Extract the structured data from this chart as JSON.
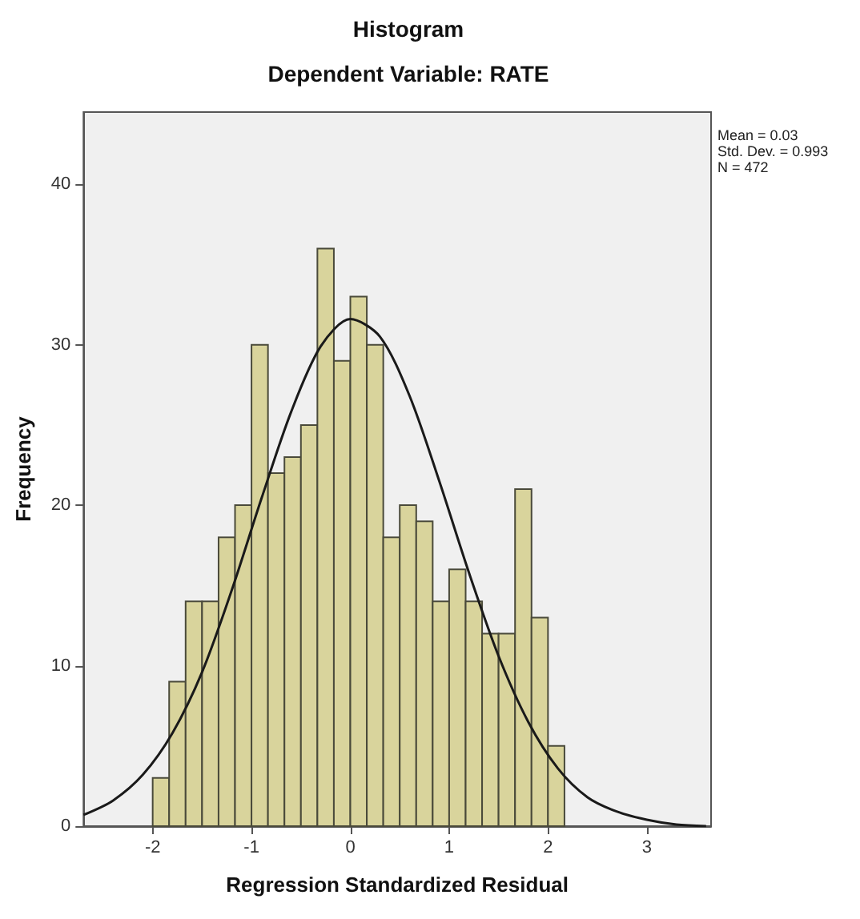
{
  "chart_data": {
    "type": "histogram",
    "title": "Histogram",
    "subtitle": "Dependent Variable: RATE",
    "xlabel": "Regression Standardized Residual",
    "ylabel": "Frequency",
    "bins": [
      -2,
      -1.8333,
      -1.6667,
      -1.5,
      -1.3333,
      -1.1667,
      -1,
      -0.8333,
      -0.6667,
      -0.5,
      -0.3333,
      -0.1667,
      0,
      0.1667,
      0.3333,
      0.5,
      0.6667,
      0.8333,
      1,
      1.1667,
      1.3333,
      1.5,
      1.6667,
      1.8333,
      2,
      2.1667
    ],
    "values": [
      3,
      9,
      14,
      14,
      18,
      20,
      30,
      22,
      23,
      25,
      36,
      29,
      33,
      30,
      18,
      20,
      19,
      14,
      16,
      14,
      12,
      12,
      21,
      13,
      5
    ],
    "color": "#d9d49c",
    "series": [
      {
        "type": "line",
        "color": "#1a1a1a",
        "x": [
          -2.7,
          -2.4,
          -2.1,
          -1.8,
          -1.5,
          -1.2,
          -0.9,
          -0.6,
          -0.3,
          0,
          0.3,
          0.6,
          0.9,
          1.2,
          1.5,
          1.8,
          2.1,
          2.4,
          2.7,
          3,
          3.3,
          3.6
        ],
        "values": [
          0.7,
          1.6,
          3.2,
          5.8,
          9.6,
          14.7,
          20.4,
          25.8,
          29.9,
          31.6,
          30.5,
          26.8,
          21.5,
          15.8,
          10.6,
          6.5,
          3.6,
          1.8,
          0.9,
          0.4,
          0.1,
          0
        ]
      }
    ],
    "marker": "none",
    "xlim": [
      -2.7,
      3.65
    ],
    "ylim": [
      0,
      44.5
    ],
    "xticks": [
      -2,
      -1,
      0,
      1,
      2,
      3
    ],
    "yticks": [
      0,
      10,
      20,
      30,
      40
    ],
    "annotations": [
      "Mean = 0.03",
      "Std. Dev. = 0.993",
      "N = 472"
    ]
  }
}
